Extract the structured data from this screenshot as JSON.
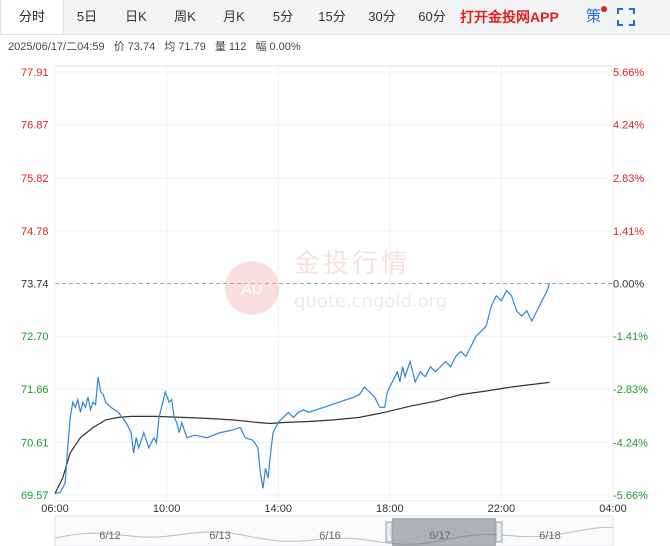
{
  "tabs": [
    {
      "label": "分时",
      "active": true
    },
    {
      "label": "5日",
      "active": false
    },
    {
      "label": "日K",
      "active": false
    },
    {
      "label": "周K",
      "active": false
    },
    {
      "label": "月K",
      "active": false
    },
    {
      "label": "5分",
      "active": false
    },
    {
      "label": "15分",
      "active": false
    },
    {
      "label": "30分",
      "active": false
    },
    {
      "label": "60分",
      "active": false
    }
  ],
  "promo_label": "打开金投网APP",
  "strategy_label": "策",
  "info": {
    "datetime": "2025/06/17/二04:59",
    "price_label": "价",
    "price": "73.74",
    "avg_label": "均",
    "avg": "71.79",
    "volume_label": "量",
    "volume": "112",
    "change_label": "幅",
    "change": "0.00%"
  },
  "watermark": {
    "text": "金投行情",
    "logo": "AU",
    "url": "quote.cngold.org"
  },
  "colors": {
    "up": "#e02020",
    "down": "#1a9a2a",
    "price_line": "#2f86d8",
    "avg_line": "#333333"
  },
  "chart_data": {
    "type": "line",
    "prev_close": 73.74,
    "y_ticks": [
      "77.91",
      "76.87",
      "75.82",
      "74.78",
      "73.74",
      "72.70",
      "71.66",
      "70.61",
      "69.57"
    ],
    "pct_ticks": [
      "5.66%",
      "4.24%",
      "2.83%",
      "1.41%",
      "0.00%",
      "-1.41%",
      "-2.83%",
      "-4.24%",
      "-5.66%"
    ],
    "x_ticks": [
      "06:00",
      "10:00",
      "14:00",
      "18:00",
      "22:00",
      "04:00"
    ],
    "ylim": [
      69.57,
      77.91
    ],
    "x_range_hours": [
      0,
      22
    ],
    "series": [
      {
        "values": [
          [
            0.0,
            69.6
          ],
          [
            0.2,
            69.62
          ],
          [
            0.4,
            69.8
          ],
          [
            0.5,
            70.5
          ],
          [
            0.6,
            71.1
          ],
          [
            0.7,
            71.4
          ],
          [
            0.8,
            71.3
          ],
          [
            0.9,
            71.45
          ],
          [
            1.0,
            71.2
          ],
          [
            1.1,
            71.4
          ],
          [
            1.2,
            71.3
          ],
          [
            1.3,
            71.5
          ],
          [
            1.4,
            71.25
          ],
          [
            1.5,
            71.4
          ],
          [
            1.6,
            71.35
          ],
          [
            1.7,
            71.9
          ],
          [
            1.8,
            71.6
          ],
          [
            1.9,
            71.55
          ],
          [
            2.0,
            71.4
          ],
          [
            2.2,
            71.3
          ],
          [
            2.5,
            71.2
          ],
          [
            2.8,
            71.0
          ],
          [
            3.0,
            70.8
          ],
          [
            3.1,
            70.4
          ],
          [
            3.2,
            70.7
          ],
          [
            3.3,
            70.5
          ],
          [
            3.5,
            70.8
          ],
          [
            3.7,
            70.5
          ],
          [
            3.9,
            70.7
          ],
          [
            4.0,
            70.6
          ],
          [
            4.1,
            71.1
          ],
          [
            4.2,
            71.3
          ],
          [
            4.35,
            71.6
          ],
          [
            4.5,
            71.4
          ],
          [
            4.6,
            71.45
          ],
          [
            4.7,
            71.1
          ],
          [
            4.8,
            71.0
          ],
          [
            4.9,
            70.8
          ],
          [
            5.0,
            71.0
          ],
          [
            5.2,
            70.7
          ],
          [
            5.5,
            70.75
          ],
          [
            6.0,
            70.7
          ],
          [
            6.5,
            70.8
          ],
          [
            7.0,
            70.85
          ],
          [
            7.3,
            70.9
          ],
          [
            7.5,
            70.7
          ],
          [
            7.8,
            70.65
          ],
          [
            8.0,
            70.5
          ],
          [
            8.1,
            70.0
          ],
          [
            8.2,
            69.7
          ],
          [
            8.3,
            70.1
          ],
          [
            8.4,
            69.9
          ],
          [
            8.5,
            70.4
          ],
          [
            8.6,
            70.8
          ],
          [
            8.8,
            71.0
          ],
          [
            9.0,
            71.1
          ],
          [
            9.2,
            71.2
          ],
          [
            9.4,
            71.1
          ],
          [
            9.6,
            71.2
          ],
          [
            9.8,
            71.25
          ],
          [
            10.0,
            71.2
          ],
          [
            10.3,
            71.25
          ],
          [
            10.6,
            71.3
          ],
          [
            10.9,
            71.35
          ],
          [
            11.2,
            71.4
          ],
          [
            11.5,
            71.45
          ],
          [
            11.8,
            71.5
          ],
          [
            12.0,
            71.55
          ],
          [
            12.2,
            71.7
          ],
          [
            12.4,
            71.6
          ],
          [
            12.6,
            71.5
          ],
          [
            12.8,
            71.3
          ],
          [
            13.0,
            71.3
          ],
          [
            13.1,
            71.6
          ],
          [
            13.3,
            71.8
          ],
          [
            13.5,
            72.0
          ],
          [
            13.6,
            71.8
          ],
          [
            13.7,
            72.1
          ],
          [
            13.8,
            71.9
          ],
          [
            14.0,
            72.2
          ],
          [
            14.2,
            71.8
          ],
          [
            14.4,
            72.0
          ],
          [
            14.6,
            71.9
          ],
          [
            14.8,
            72.1
          ],
          [
            15.0,
            72.0
          ],
          [
            15.2,
            72.1
          ],
          [
            15.4,
            72.2
          ],
          [
            15.6,
            72.1
          ],
          [
            15.8,
            72.3
          ],
          [
            16.0,
            72.4
          ],
          [
            16.2,
            72.3
          ],
          [
            16.4,
            72.5
          ],
          [
            16.6,
            72.7
          ],
          [
            16.8,
            72.8
          ],
          [
            17.0,
            72.9
          ],
          [
            17.2,
            73.3
          ],
          [
            17.4,
            73.5
          ],
          [
            17.6,
            73.4
          ],
          [
            17.8,
            73.6
          ],
          [
            18.0,
            73.5
          ],
          [
            18.2,
            73.2
          ],
          [
            18.4,
            73.1
          ],
          [
            18.6,
            73.2
          ],
          [
            18.8,
            73.0
          ],
          [
            19.0,
            73.2
          ],
          [
            19.2,
            73.4
          ],
          [
            19.4,
            73.6
          ],
          [
            19.5,
            73.74
          ]
        ]
      }
    ],
    "avg_series": [
      [
        0.0,
        69.6
      ],
      [
        0.3,
        69.9
      ],
      [
        0.6,
        70.4
      ],
      [
        1.0,
        70.7
      ],
      [
        1.5,
        70.9
      ],
      [
        2.0,
        71.05
      ],
      [
        2.5,
        71.1
      ],
      [
        3.0,
        71.12
      ],
      [
        4.0,
        71.12
      ],
      [
        5.0,
        71.1
      ],
      [
        6.0,
        71.08
      ],
      [
        7.0,
        71.05
      ],
      [
        8.0,
        71.0
      ],
      [
        8.5,
        70.98
      ],
      [
        9.0,
        71.0
      ],
      [
        10.0,
        71.02
      ],
      [
        11.0,
        71.05
      ],
      [
        12.0,
        71.1
      ],
      [
        13.0,
        71.2
      ],
      [
        14.0,
        71.32
      ],
      [
        15.0,
        71.42
      ],
      [
        16.0,
        71.55
      ],
      [
        17.0,
        71.62
      ],
      [
        18.0,
        71.7
      ],
      [
        19.0,
        71.76
      ],
      [
        19.5,
        71.79
      ]
    ],
    "navigator_labels": [
      "6/12",
      "6/13",
      "6/16",
      "6/17",
      "6/18"
    ]
  }
}
